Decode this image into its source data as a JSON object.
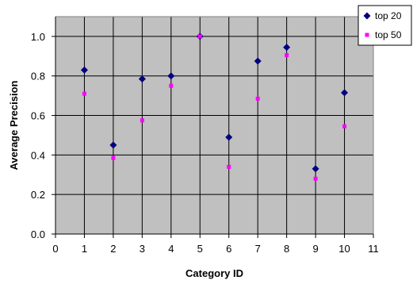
{
  "chart_data": {
    "type": "scatter",
    "title": "",
    "xlabel": "Category ID",
    "ylabel": "Average Precision",
    "xlim": [
      0,
      11
    ],
    "ylim": [
      0.0,
      1.1
    ],
    "x_ticks": [
      "0",
      "1",
      "2",
      "3",
      "4",
      "5",
      "6",
      "7",
      "8",
      "9",
      "10",
      "11"
    ],
    "y_ticks": [
      "0.0",
      "0.2",
      "0.4",
      "0.6",
      "0.8",
      "1.0"
    ],
    "grid": true,
    "plot_background": "#c0c0c0",
    "legend_position": "top-right",
    "series": [
      {
        "name": "top 20",
        "marker": "diamond",
        "color": "#000080",
        "points": [
          {
            "x": 1,
            "y": 0.83
          },
          {
            "x": 2,
            "y": 0.45
          },
          {
            "x": 3,
            "y": 0.785
          },
          {
            "x": 4,
            "y": 0.8
          },
          {
            "x": 5,
            "y": 1.0
          },
          {
            "x": 6,
            "y": 0.49
          },
          {
            "x": 7,
            "y": 0.875
          },
          {
            "x": 8,
            "y": 0.945
          },
          {
            "x": 9,
            "y": 0.33
          },
          {
            "x": 10,
            "y": 0.715
          }
        ]
      },
      {
        "name": "top 50",
        "marker": "square",
        "color": "#ff00ff",
        "points": [
          {
            "x": 1,
            "y": 0.71
          },
          {
            "x": 2,
            "y": 0.385
          },
          {
            "x": 3,
            "y": 0.575
          },
          {
            "x": 4,
            "y": 0.75
          },
          {
            "x": 5,
            "y": 1.0
          },
          {
            "x": 6,
            "y": 0.34
          },
          {
            "x": 7,
            "y": 0.685
          },
          {
            "x": 8,
            "y": 0.905
          },
          {
            "x": 9,
            "y": 0.28
          },
          {
            "x": 10,
            "y": 0.545
          }
        ]
      }
    ]
  }
}
